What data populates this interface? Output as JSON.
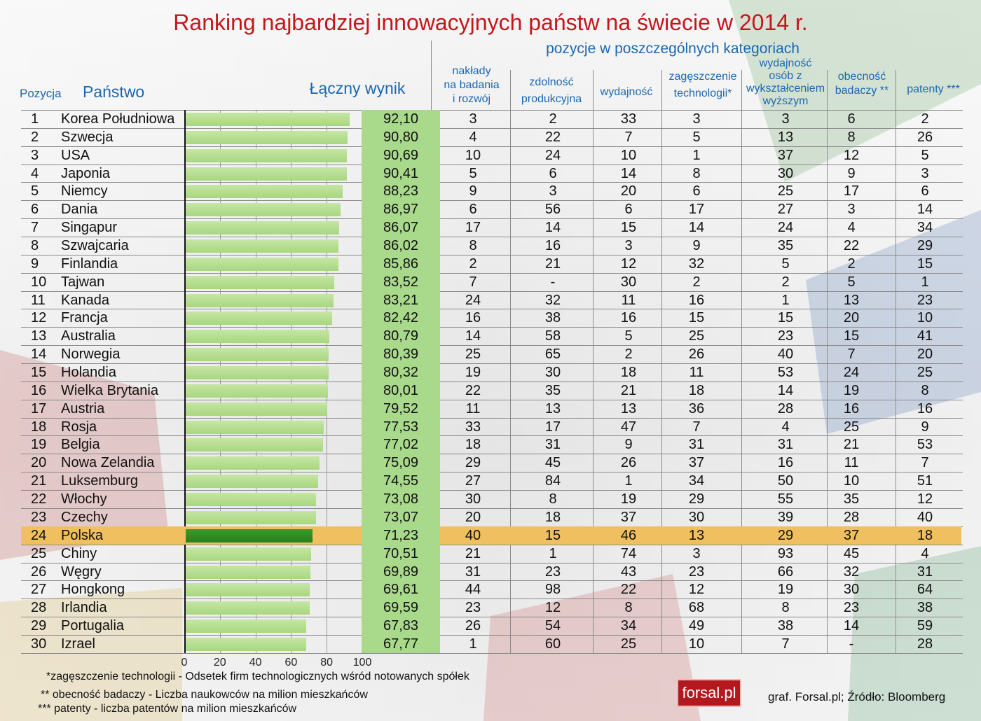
{
  "title": "Ranking najbardziej innowacyjnych państw na świecie w 2014 r.",
  "subtitle": "pozycje w poszczególnych kategoriach",
  "headers": {
    "position": "Pozycja",
    "country": "Państwo",
    "total": "Łączny  wynik",
    "rd": [
      "nakłady",
      "na badania",
      "i rozwój"
    ],
    "productive": [
      "zdolność",
      "produkcyjna"
    ],
    "efficiency": "wydajność",
    "density": [
      "zagęszczenie",
      "technologii*"
    ],
    "tertiary": [
      "wydajność",
      "osób z",
      "wykształceniem",
      "wyższym"
    ],
    "researchers": [
      "obecność",
      "badaczy **"
    ],
    "patents": "patenty ***"
  },
  "chart_data": {
    "type": "table",
    "bar_axis": {
      "ticks": [
        "0",
        "20",
        "40",
        "60",
        "80",
        "100"
      ],
      "xlim": [
        0,
        100
      ]
    },
    "highlight_rank": 24,
    "columns": [
      "Pozycja",
      "Państwo",
      "Łączny wynik",
      "nakłady na badania i rozwój",
      "zdolność produkcyjna",
      "wydajność",
      "zagęszczenie technologii*",
      "wydajność osób z wykształceniem wyższym",
      "obecność badaczy **",
      "patenty ***"
    ],
    "rows": [
      {
        "rank": "1",
        "country": "Korea Południowa",
        "score": "92,10",
        "value": 92.1,
        "cats": [
          "3",
          "2",
          "33",
          "3",
          "3",
          "6",
          "2"
        ]
      },
      {
        "rank": "2",
        "country": "Szwecja",
        "score": "90,80",
        "value": 90.8,
        "cats": [
          "4",
          "22",
          "7",
          "5",
          "13",
          "8",
          "26"
        ]
      },
      {
        "rank": "3",
        "country": "USA",
        "score": "90,69",
        "value": 90.69,
        "cats": [
          "10",
          "24",
          "10",
          "1",
          "37",
          "12",
          "5"
        ]
      },
      {
        "rank": "4",
        "country": "Japonia",
        "score": "90,41",
        "value": 90.41,
        "cats": [
          "5",
          "6",
          "14",
          "8",
          "30",
          "9",
          "3"
        ]
      },
      {
        "rank": "5",
        "country": "Niemcy",
        "score": "88,23",
        "value": 88.23,
        "cats": [
          "9",
          "3",
          "20",
          "6",
          "25",
          "17",
          "6"
        ]
      },
      {
        "rank": "6",
        "country": "Dania",
        "score": "86,97",
        "value": 86.97,
        "cats": [
          "6",
          "56",
          "6",
          "17",
          "27",
          "3",
          "14"
        ]
      },
      {
        "rank": "7",
        "country": "Singapur",
        "score": "86,07",
        "value": 86.07,
        "cats": [
          "17",
          "14",
          "15",
          "14",
          "24",
          "4",
          "34"
        ]
      },
      {
        "rank": "8",
        "country": "Szwajcaria",
        "score": "86,02",
        "value": 86.02,
        "cats": [
          "8",
          "16",
          "3",
          "9",
          "35",
          "22",
          "29"
        ]
      },
      {
        "rank": "9",
        "country": "Finlandia",
        "score": "85,86",
        "value": 85.86,
        "cats": [
          "2",
          "21",
          "12",
          "32",
          "5",
          "2",
          "15"
        ]
      },
      {
        "rank": "10",
        "country": "Tajwan",
        "score": "83,52",
        "value": 83.52,
        "cats": [
          "7",
          "-",
          "30",
          "2",
          "2",
          "5",
          "1"
        ]
      },
      {
        "rank": "11",
        "country": "Kanada",
        "score": "83,21",
        "value": 83.21,
        "cats": [
          "24",
          "32",
          "11",
          "16",
          "1",
          "13",
          "23"
        ]
      },
      {
        "rank": "12",
        "country": "Francja",
        "score": "82,42",
        "value": 82.42,
        "cats": [
          "16",
          "38",
          "16",
          "15",
          "15",
          "20",
          "10"
        ]
      },
      {
        "rank": "13",
        "country": "Australia",
        "score": "80,79",
        "value": 80.79,
        "cats": [
          "14",
          "58",
          "5",
          "25",
          "23",
          "15",
          "41"
        ]
      },
      {
        "rank": "14",
        "country": "Norwegia",
        "score": "80,39",
        "value": 80.39,
        "cats": [
          "25",
          "65",
          "2",
          "26",
          "40",
          "7",
          "20"
        ]
      },
      {
        "rank": "15",
        "country": "Holandia",
        "score": "80,32",
        "value": 80.32,
        "cats": [
          "19",
          "30",
          "18",
          "11",
          "53",
          "24",
          "25"
        ]
      },
      {
        "rank": "16",
        "country": "Wielka Brytania",
        "score": "80,01",
        "value": 80.01,
        "cats": [
          "22",
          "35",
          "21",
          "18",
          "14",
          "19",
          "8"
        ]
      },
      {
        "rank": "17",
        "country": "Austria",
        "score": "79,52",
        "value": 79.52,
        "cats": [
          "11",
          "13",
          "13",
          "36",
          "28",
          "16",
          "16"
        ]
      },
      {
        "rank": "18",
        "country": "Rosja",
        "score": "77,53",
        "value": 77.53,
        "cats": [
          "33",
          "17",
          "47",
          "7",
          "4",
          "25",
          "9"
        ]
      },
      {
        "rank": "19",
        "country": "Belgia",
        "score": "77,02",
        "value": 77.02,
        "cats": [
          "18",
          "31",
          "9",
          "31",
          "31",
          "21",
          "53"
        ]
      },
      {
        "rank": "20",
        "country": "Nowa Zelandia",
        "score": "75,09",
        "value": 75.09,
        "cats": [
          "29",
          "45",
          "26",
          "37",
          "16",
          "11",
          "7"
        ]
      },
      {
        "rank": "21",
        "country": "Luksemburg",
        "score": "74,55",
        "value": 74.55,
        "cats": [
          "27",
          "84",
          "1",
          "34",
          "50",
          "10",
          "51"
        ]
      },
      {
        "rank": "22",
        "country": "Włochy",
        "score": "73,08",
        "value": 73.08,
        "cats": [
          "30",
          "8",
          "19",
          "29",
          "55",
          "35",
          "12"
        ]
      },
      {
        "rank": "23",
        "country": "Czechy",
        "score": "73,07",
        "value": 73.07,
        "cats": [
          "20",
          "18",
          "37",
          "30",
          "39",
          "28",
          "40"
        ]
      },
      {
        "rank": "24",
        "country": "Polska",
        "score": "71,23",
        "value": 71.23,
        "cats": [
          "40",
          "15",
          "46",
          "13",
          "29",
          "37",
          "18"
        ]
      },
      {
        "rank": "25",
        "country": "Chiny",
        "score": "70,51",
        "value": 70.51,
        "cats": [
          "21",
          "1",
          "74",
          "3",
          "93",
          "45",
          "4"
        ]
      },
      {
        "rank": "26",
        "country": "Węgry",
        "score": "69,89",
        "value": 69.89,
        "cats": [
          "31",
          "23",
          "43",
          "23",
          "66",
          "32",
          "31"
        ]
      },
      {
        "rank": "27",
        "country": "Hongkong",
        "score": "69,61",
        "value": 69.61,
        "cats": [
          "44",
          "98",
          "22",
          "12",
          "19",
          "30",
          "64"
        ]
      },
      {
        "rank": "28",
        "country": "Irlandia",
        "score": "69,59",
        "value": 69.59,
        "cats": [
          "23",
          "12",
          "8",
          "68",
          "8",
          "23",
          "38"
        ]
      },
      {
        "rank": "29",
        "country": "Portugalia",
        "score": "67,83",
        "value": 67.83,
        "cats": [
          "26",
          "54",
          "34",
          "49",
          "38",
          "14",
          "59"
        ]
      },
      {
        "rank": "30",
        "country": "Izrael",
        "score": "67,77",
        "value": 67.77,
        "cats": [
          "1",
          "60",
          "25",
          "10",
          "7",
          "-",
          "28"
        ]
      }
    ]
  },
  "notes": [
    "*zagęszczenie technologii -  Odsetek firm technologicznych wśród notowanych spółek",
    "** obecność badaczy - Liczba naukowców na milion mieszkańców",
    "*** patenty - liczba patentów na milion mieszkańców"
  ],
  "logo": "forsal.pl",
  "source": "graf. Forsal.pl; Źródło: Bloomberg"
}
